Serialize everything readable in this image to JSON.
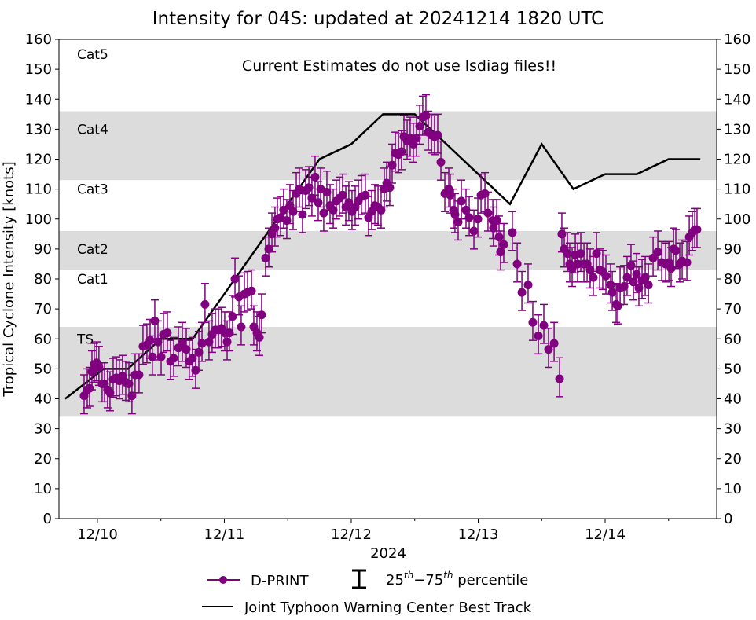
{
  "chart_data": {
    "type": "scatter",
    "title": "Intensity for 04S: updated at 20241214 1820 UTC",
    "xlabel": "2024",
    "ylabel": "Tropical Cyclone Intensity [knots]",
    "annotation": "Current Estimates do not use lsdiag files!!",
    "x_units": "days since 2024-12-10 00 UTC",
    "xlim": [
      -0.303,
      4.879
    ],
    "ylim": [
      0,
      160
    ],
    "x_ticks": [
      {
        "value": 0,
        "label": "12/10"
      },
      {
        "value": 1,
        "label": "12/11"
      },
      {
        "value": 2,
        "label": "12/12"
      },
      {
        "value": 3,
        "label": "12/13"
      },
      {
        "value": 4,
        "label": "12/14"
      }
    ],
    "x_minor_ticks": [
      0.5,
      1.5,
      2.5,
      3.5,
      4.5
    ],
    "y_ticks": [
      0,
      10,
      20,
      30,
      40,
      50,
      60,
      70,
      80,
      90,
      100,
      110,
      120,
      130,
      140,
      150,
      160
    ],
    "grid": false,
    "category_bands": [
      {
        "label": "TS",
        "shaded": true,
        "range": [
          34,
          64
        ],
        "label_value": 60
      },
      {
        "label": "Cat1",
        "shaded": false,
        "range": [
          64,
          83
        ],
        "label_value": 80
      },
      {
        "label": "Cat2",
        "shaded": true,
        "range": [
          83,
          96
        ],
        "label_value": 90
      },
      {
        "label": "Cat3",
        "shaded": false,
        "range": [
          96,
          113
        ],
        "label_value": 110
      },
      {
        "label": "Cat4",
        "shaded": true,
        "range": [
          113,
          136
        ],
        "label_value": 130
      },
      {
        "label": "Cat5",
        "shaded": false,
        "range": [
          136,
          160
        ],
        "label_value": 155
      }
    ],
    "band_color": "#dcdcdc",
    "series": [
      {
        "name": "D-PRINT",
        "color": "#800080",
        "errorbar_label_pre": "25",
        "errorbar_sup1": "th",
        "errorbar_mid": "−75",
        "errorbar_sup2": "th",
        "errorbar_label_post": " percentile",
        "percentile_offsets": [
          -6,
          7
        ],
        "points": [
          [
            -0.105,
            41
          ],
          [
            -0.08,
            43
          ],
          [
            -0.062,
            43.5
          ],
          [
            -0.043,
            49
          ],
          [
            -0.025,
            51.5
          ],
          [
            -0.006,
            52
          ],
          [
            0.012,
            50.5
          ],
          [
            0.037,
            45
          ],
          [
            0.056,
            45
          ],
          [
            0.08,
            43
          ],
          [
            0.099,
            42
          ],
          [
            0.124,
            46.5
          ],
          [
            0.149,
            47
          ],
          [
            0.173,
            46
          ],
          [
            0.198,
            47.5
          ],
          [
            0.223,
            45.5
          ],
          [
            0.248,
            45
          ],
          [
            0.272,
            41
          ],
          [
            0.297,
            48
          ],
          [
            0.328,
            48
          ],
          [
            0.359,
            57.5
          ],
          [
            0.39,
            58
          ],
          [
            0.415,
            59.5
          ],
          [
            0.433,
            54
          ],
          [
            0.452,
            66
          ],
          [
            0.477,
            59
          ],
          [
            0.502,
            54
          ],
          [
            0.52,
            61.5
          ],
          [
            0.551,
            62
          ],
          [
            0.576,
            52.5
          ],
          [
            0.601,
            53.5
          ],
          [
            0.638,
            57
          ],
          [
            0.669,
            58.5
          ],
          [
            0.7,
            56.5
          ],
          [
            0.724,
            52.5
          ],
          [
            0.749,
            53.5
          ],
          [
            0.774,
            49.5
          ],
          [
            0.799,
            55.5
          ],
          [
            0.824,
            58.5
          ],
          [
            0.848,
            71.5
          ],
          [
            0.879,
            59
          ],
          [
            0.904,
            61.5
          ],
          [
            0.929,
            63
          ],
          [
            0.954,
            63
          ],
          [
            0.978,
            63.5
          ],
          [
            1.003,
            62
          ],
          [
            1.022,
            59
          ],
          [
            1.04,
            62
          ],
          [
            1.065,
            67.5
          ],
          [
            1.084,
            80
          ],
          [
            1.115,
            74
          ],
          [
            1.133,
            64
          ],
          [
            1.158,
            75
          ],
          [
            1.183,
            75.5
          ],
          [
            1.214,
            76
          ],
          [
            1.232,
            64
          ],
          [
            1.257,
            62
          ],
          [
            1.276,
            60.5
          ],
          [
            1.294,
            68
          ],
          [
            1.325,
            87
          ],
          [
            1.35,
            90
          ],
          [
            1.375,
            95
          ],
          [
            1.399,
            97
          ],
          [
            1.418,
            100
          ],
          [
            1.443,
            100.5
          ],
          [
            1.467,
            103
          ],
          [
            1.492,
            99.5
          ],
          [
            1.517,
            104.5
          ],
          [
            1.542,
            102.5
          ],
          [
            1.567,
            108.5
          ],
          [
            1.591,
            110
          ],
          [
            1.616,
            101.5
          ],
          [
            1.641,
            109.5
          ],
          [
            1.666,
            110.5
          ],
          [
            1.69,
            107
          ],
          [
            1.715,
            114
          ],
          [
            1.74,
            105.5
          ],
          [
            1.759,
            110
          ],
          [
            1.783,
            102
          ],
          [
            1.808,
            109
          ],
          [
            1.833,
            104.5
          ],
          [
            1.858,
            103
          ],
          [
            1.882,
            106
          ],
          [
            1.907,
            107
          ],
          [
            1.932,
            108
          ],
          [
            1.957,
            104
          ],
          [
            1.981,
            105.5
          ],
          [
            2.006,
            102.5
          ],
          [
            2.031,
            104
          ],
          [
            2.056,
            106
          ],
          [
            2.08,
            107.5
          ],
          [
            2.111,
            108
          ],
          [
            2.136,
            100.5
          ],
          [
            2.161,
            102.5
          ],
          [
            2.186,
            104.5
          ],
          [
            2.211,
            104
          ],
          [
            2.235,
            103
          ],
          [
            2.26,
            110
          ],
          [
            2.279,
            112
          ],
          [
            2.303,
            110.5
          ],
          [
            2.322,
            118
          ],
          [
            2.347,
            122
          ],
          [
            2.372,
            121.5
          ],
          [
            2.396,
            122.5
          ],
          [
            2.415,
            127.5
          ],
          [
            2.44,
            126
          ],
          [
            2.464,
            127
          ],
          [
            2.489,
            125
          ],
          [
            2.514,
            127
          ],
          [
            2.539,
            131
          ],
          [
            2.563,
            134
          ],
          [
            2.588,
            134.5
          ],
          [
            2.607,
            129
          ],
          [
            2.632,
            128
          ],
          [
            2.656,
            127.5
          ],
          [
            2.681,
            128
          ],
          [
            2.706,
            119
          ],
          [
            2.737,
            108.5
          ],
          [
            2.768,
            110
          ],
          [
            2.78,
            108
          ],
          [
            2.805,
            103
          ],
          [
            2.817,
            101.5
          ],
          [
            2.842,
            99
          ],
          [
            2.867,
            106
          ],
          [
            2.904,
            103
          ],
          [
            2.929,
            100.5
          ],
          [
            2.966,
            96
          ],
          [
            2.997,
            100
          ],
          [
            3.022,
            108
          ],
          [
            3.053,
            108.5
          ],
          [
            3.077,
            102
          ],
          [
            3.115,
            99.5
          ],
          [
            3.12,
            97
          ],
          [
            3.146,
            99.5
          ],
          [
            3.164,
            94
          ],
          [
            3.176,
            89
          ],
          [
            3.201,
            91.5
          ],
          [
            3.269,
            95.5
          ],
          [
            3.307,
            85
          ],
          [
            3.344,
            75.5
          ],
          [
            3.393,
            78
          ],
          [
            3.43,
            65.5
          ],
          [
            3.474,
            61
          ],
          [
            3.517,
            64.5
          ],
          [
            3.554,
            56.5
          ],
          [
            3.598,
            58.5
          ],
          [
            3.641,
            46.7
          ],
          [
            3.659,
            95
          ],
          [
            3.678,
            90
          ],
          [
            3.703,
            88.5
          ],
          [
            3.721,
            85
          ],
          [
            3.74,
            83.5
          ],
          [
            3.765,
            88
          ],
          [
            3.783,
            85
          ],
          [
            3.808,
            88.5
          ],
          [
            3.833,
            85
          ],
          [
            3.858,
            85
          ],
          [
            3.882,
            83
          ],
          [
            3.907,
            80.5
          ],
          [
            3.932,
            88.5
          ],
          [
            3.957,
            83
          ],
          [
            3.981,
            82.5
          ],
          [
            4.006,
            81
          ],
          [
            4.043,
            78
          ],
          [
            4.056,
            75.5
          ],
          [
            4.087,
            71.5
          ],
          [
            4.099,
            71
          ],
          [
            4.118,
            77
          ],
          [
            4.149,
            77.5
          ],
          [
            4.173,
            80.5
          ],
          [
            4.204,
            84.5
          ],
          [
            4.223,
            79
          ],
          [
            4.248,
            81.5
          ],
          [
            4.266,
            77
          ],
          [
            4.291,
            79.5
          ],
          [
            4.316,
            80.5
          ],
          [
            4.341,
            78
          ],
          [
            4.378,
            87
          ],
          [
            4.415,
            89
          ],
          [
            4.446,
            85.5
          ],
          [
            4.477,
            85
          ],
          [
            4.502,
            85.5
          ],
          [
            4.52,
            83.5
          ],
          [
            4.539,
            90
          ],
          [
            4.557,
            89.5
          ],
          [
            4.588,
            85
          ],
          [
            4.607,
            86
          ],
          [
            4.644,
            85.5
          ],
          [
            4.663,
            94
          ],
          [
            4.687,
            95.5
          ],
          [
            4.706,
            96.5
          ],
          [
            4.724,
            96.5
          ]
        ]
      },
      {
        "name": "Joint Typhoon Warning Center Best Track",
        "color": "#000000",
        "points": [
          [
            -0.254,
            40
          ],
          [
            0.05,
            50
          ],
          [
            0.24,
            50
          ],
          [
            0.5,
            60
          ],
          [
            0.75,
            60
          ],
          [
            1.75,
            120
          ],
          [
            2.0,
            125
          ],
          [
            2.25,
            135
          ],
          [
            2.5,
            135
          ],
          [
            3.25,
            105
          ],
          [
            3.5,
            125
          ],
          [
            3.75,
            110
          ],
          [
            4.0,
            115
          ],
          [
            4.25,
            115
          ],
          [
            4.5,
            120
          ],
          [
            4.75,
            120
          ]
        ]
      }
    ],
    "legend_placement": "bottom-center"
  }
}
